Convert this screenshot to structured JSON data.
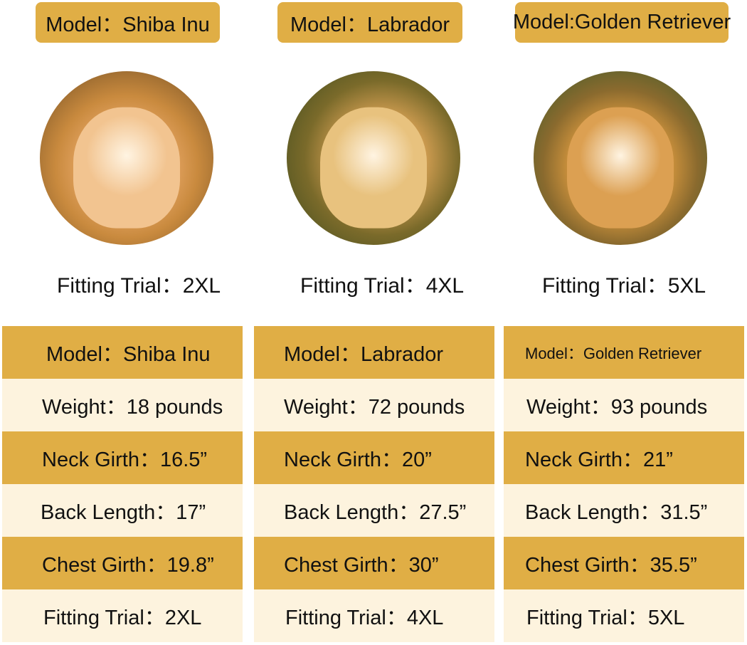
{
  "colors": {
    "header_gold": "#E0AE45",
    "row_cream": "#FDF3DE"
  },
  "dogs": [
    {
      "pill_label": "Model：Shiba Inu",
      "photo_icon": "shiba-inu-photo",
      "fitting_label": "Fitting Trial：2XL",
      "table": [
        "Model：Shiba Inu",
        "Weight：18 pounds",
        "Neck Girth：16.5”",
        "Back Length：17”",
        "Chest Girth：19.8”",
        "Fitting Trial：2XL"
      ]
    },
    {
      "pill_label": "Model：Labrador",
      "photo_icon": "labrador-photo",
      "fitting_label": "Fitting Trial：4XL",
      "table": [
        "Model：Labrador",
        "Weight：72 pounds",
        "Neck Girth：20”",
        "Back Length：27.5”",
        "Chest Girth：30”",
        "Fitting Trial：4XL"
      ]
    },
    {
      "pill_label": "Model:Golden Retriever",
      "photo_icon": "golden-retriever-photo",
      "fitting_label": "Fitting Trial：5XL",
      "table": [
        "Model：Golden Retriever",
        "Weight：93 pounds",
        "Neck Girth：21”",
        "Back Length：31.5”",
        "Chest Girth：35.5”",
        "Fitting Trial：5XL"
      ]
    }
  ]
}
